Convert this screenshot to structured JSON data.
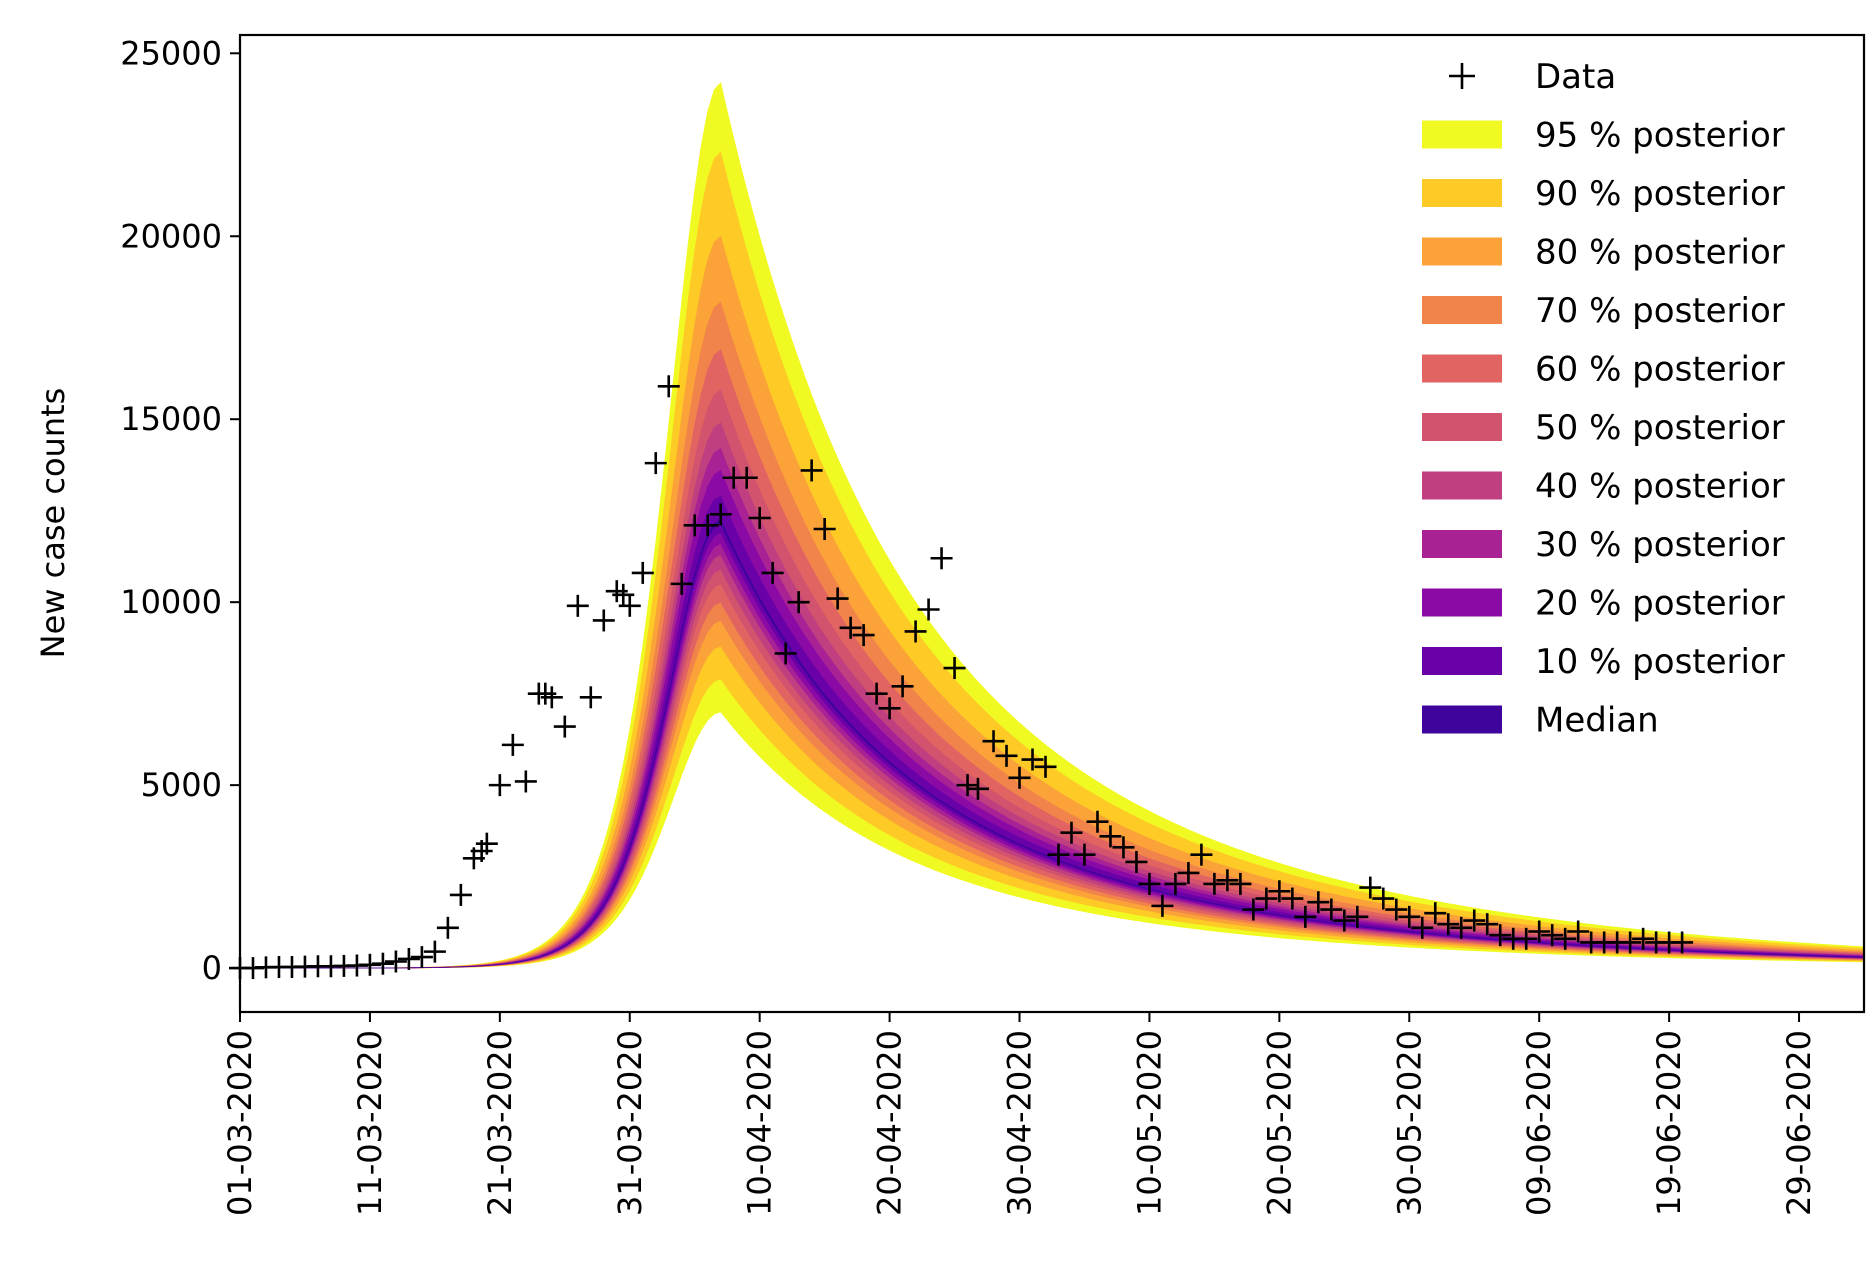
{
  "chart_data": {
    "type": "area",
    "title": "",
    "xlabel": "",
    "ylabel": "New case counts",
    "xlim": [
      0,
      125
    ],
    "ylim": [
      -1200,
      25500
    ],
    "yticks": [
      0,
      5000,
      10000,
      15000,
      20000,
      25000
    ],
    "ytick_labels": [
      "0",
      "5000",
      "10000",
      "15000",
      "20000",
      "25000"
    ],
    "xticks": [
      0,
      10,
      20,
      30,
      40,
      50,
      60,
      70,
      80,
      90,
      100,
      110,
      120
    ],
    "xtick_labels": [
      "01-03-2020",
      "11-03-2020",
      "21-03-2020",
      "31-03-2020",
      "10-04-2020",
      "20-04-2020",
      "30-04-2020",
      "10-05-2020",
      "20-05-2020",
      "30-05-2020",
      "09-06-2020",
      "19-06-2020",
      "29-06-2020"
    ],
    "curve": {
      "peak_day": 37,
      "median_peak": 12200,
      "rise_width": 5.5,
      "decay_tau": 18.5,
      "end_day": 125
    },
    "bands": [
      {
        "name": "95 % posterior",
        "color": "#f0f921",
        "lower_peak": 7000,
        "upper_peak": 24200
      },
      {
        "name": "90 % posterior",
        "color": "#fdca26",
        "lower_peak": 7900,
        "upper_peak": 22300
      },
      {
        "name": "80 % posterior",
        "color": "#fba238",
        "lower_peak": 8800,
        "upper_peak": 20000
      },
      {
        "name": "70 % posterior",
        "color": "#f1844b",
        "lower_peak": 9500,
        "upper_peak": 18200
      },
      {
        "name": "60 % posterior",
        "color": "#e16462",
        "lower_peak": 10000,
        "upper_peak": 16900
      },
      {
        "name": "50 % posterior",
        "color": "#d1536e",
        "lower_peak": 10500,
        "upper_peak": 15800
      },
      {
        "name": "40 % posterior",
        "color": "#bf3f80",
        "lower_peak": 10900,
        "upper_peak": 14900
      },
      {
        "name": "30 % posterior",
        "color": "#a82296",
        "lower_peak": 11300,
        "upper_peak": 14200
      },
      {
        "name": "20 % posterior",
        "color": "#8b0aa5",
        "lower_peak": 11600,
        "upper_peak": 13600
      },
      {
        "name": "10 % posterior",
        "color": "#6a00a8",
        "lower_peak": 11900,
        "upper_peak": 12900
      },
      {
        "name": "Median",
        "color": "#3e049c",
        "lower_peak": 12150,
        "upper_peak": 12250
      }
    ],
    "data_legend": "Data",
    "data_points": [
      {
        "x": 0,
        "y": 0
      },
      {
        "x": 1,
        "y": 0
      },
      {
        "x": 2,
        "y": 20
      },
      {
        "x": 3,
        "y": 30
      },
      {
        "x": 4,
        "y": 30
      },
      {
        "x": 5,
        "y": 40
      },
      {
        "x": 6,
        "y": 50
      },
      {
        "x": 7,
        "y": 50
      },
      {
        "x": 8,
        "y": 60
      },
      {
        "x": 9,
        "y": 70
      },
      {
        "x": 10,
        "y": 90
      },
      {
        "x": 11,
        "y": 120
      },
      {
        "x": 12,
        "y": 180
      },
      {
        "x": 13,
        "y": 250
      },
      {
        "x": 14,
        "y": 300
      },
      {
        "x": 15,
        "y": 450
      },
      {
        "x": 16,
        "y": 1100
      },
      {
        "x": 17,
        "y": 2000
      },
      {
        "x": 18,
        "y": 3000
      },
      {
        "x": 18.6,
        "y": 3200
      },
      {
        "x": 19,
        "y": 3400
      },
      {
        "x": 20,
        "y": 5000
      },
      {
        "x": 21,
        "y": 6100
      },
      {
        "x": 22,
        "y": 5100
      },
      {
        "x": 23,
        "y": 7500
      },
      {
        "x": 23.5,
        "y": 7500
      },
      {
        "x": 24,
        "y": 7400
      },
      {
        "x": 25,
        "y": 6600
      },
      {
        "x": 26,
        "y": 9900
      },
      {
        "x": 27,
        "y": 7400
      },
      {
        "x": 28,
        "y": 9500
      },
      {
        "x": 29,
        "y": 10300
      },
      {
        "x": 29.5,
        "y": 10200
      },
      {
        "x": 30,
        "y": 9900
      },
      {
        "x": 31,
        "y": 10800
      },
      {
        "x": 32,
        "y": 13800
      },
      {
        "x": 33,
        "y": 15900
      },
      {
        "x": 34,
        "y": 10500
      },
      {
        "x": 35,
        "y": 12100
      },
      {
        "x": 36,
        "y": 12100
      },
      {
        "x": 37,
        "y": 12400
      },
      {
        "x": 38,
        "y": 13400
      },
      {
        "x": 39,
        "y": 13400
      },
      {
        "x": 40,
        "y": 12300
      },
      {
        "x": 41,
        "y": 10800
      },
      {
        "x": 42,
        "y": 8600
      },
      {
        "x": 43,
        "y": 10000
      },
      {
        "x": 44,
        "y": 13600
      },
      {
        "x": 45,
        "y": 12000
      },
      {
        "x": 46,
        "y": 10100
      },
      {
        "x": 47,
        "y": 9300
      },
      {
        "x": 48,
        "y": 9100
      },
      {
        "x": 49,
        "y": 7500
      },
      {
        "x": 50,
        "y": 7100
      },
      {
        "x": 51,
        "y": 7700
      },
      {
        "x": 52,
        "y": 9200
      },
      {
        "x": 53,
        "y": 9800
      },
      {
        "x": 54,
        "y": 11200
      },
      {
        "x": 55,
        "y": 8200
      },
      {
        "x": 56,
        "y": 5000
      },
      {
        "x": 56.8,
        "y": 4900
      },
      {
        "x": 58,
        "y": 6200
      },
      {
        "x": 59,
        "y": 5800
      },
      {
        "x": 60,
        "y": 5200
      },
      {
        "x": 61,
        "y": 5700
      },
      {
        "x": 62,
        "y": 5500
      },
      {
        "x": 63,
        "y": 3100
      },
      {
        "x": 64,
        "y": 3700
      },
      {
        "x": 65,
        "y": 3100
      },
      {
        "x": 66,
        "y": 4000
      },
      {
        "x": 67,
        "y": 3600
      },
      {
        "x": 68,
        "y": 3300
      },
      {
        "x": 69,
        "y": 2900
      },
      {
        "x": 70,
        "y": 2300
      },
      {
        "x": 71,
        "y": 1700
      },
      {
        "x": 72,
        "y": 2300
      },
      {
        "x": 73,
        "y": 2600
      },
      {
        "x": 74,
        "y": 3100
      },
      {
        "x": 75,
        "y": 2300
      },
      {
        "x": 76,
        "y": 2400
      },
      {
        "x": 77,
        "y": 2300
      },
      {
        "x": 78,
        "y": 1600
      },
      {
        "x": 79,
        "y": 1900
      },
      {
        "x": 80,
        "y": 2100
      },
      {
        "x": 81,
        "y": 1900
      },
      {
        "x": 82,
        "y": 1400
      },
      {
        "x": 83,
        "y": 1800
      },
      {
        "x": 84,
        "y": 1600
      },
      {
        "x": 85,
        "y": 1300
      },
      {
        "x": 86,
        "y": 1400
      },
      {
        "x": 87,
        "y": 2200
      },
      {
        "x": 88,
        "y": 1900
      },
      {
        "x": 89,
        "y": 1600
      },
      {
        "x": 90,
        "y": 1400
      },
      {
        "x": 91,
        "y": 1100
      },
      {
        "x": 92,
        "y": 1500
      },
      {
        "x": 93,
        "y": 1200
      },
      {
        "x": 94,
        "y": 1100
      },
      {
        "x": 95,
        "y": 1300
      },
      {
        "x": 96,
        "y": 1200
      },
      {
        "x": 97,
        "y": 900
      },
      {
        "x": 98,
        "y": 800
      },
      {
        "x": 99,
        "y": 800
      },
      {
        "x": 100,
        "y": 1000
      },
      {
        "x": 101,
        "y": 900
      },
      {
        "x": 102,
        "y": 800
      },
      {
        "x": 103,
        "y": 1000
      },
      {
        "x": 104,
        "y": 700
      },
      {
        "x": 105,
        "y": 700
      },
      {
        "x": 106,
        "y": 700
      },
      {
        "x": 107,
        "y": 700
      },
      {
        "x": 108,
        "y": 800
      },
      {
        "x": 109,
        "y": 700
      },
      {
        "x": 110,
        "y": 700
      },
      {
        "x": 111,
        "y": 700
      }
    ]
  }
}
